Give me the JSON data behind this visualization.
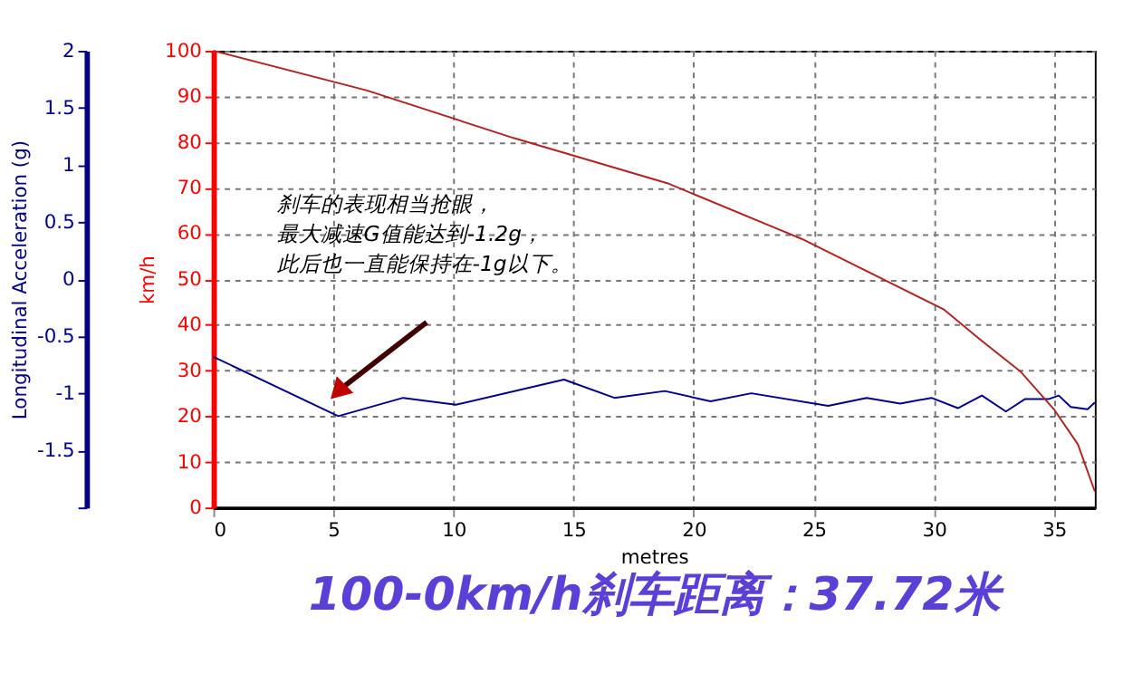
{
  "chart_data": {
    "type": "line",
    "title": "100-0km/h刹车距离：37.72米",
    "xlabel": "metres",
    "ylabel": "Longitudinal Acceleration (g)",
    "y2label": "km/h",
    "x": [
      0,
      5.2,
      7.9,
      10.1,
      14.6,
      16.7,
      18.8,
      20.7,
      22.4,
      25.6,
      27.2,
      28.6,
      29.9,
      31.0,
      32.0,
      33.0,
      33.8,
      34.8,
      35.2,
      35.7,
      36.4,
      36.7
    ],
    "series": [
      {
        "color": "#00008b",
        "axis": "y",
        "values": [
          -0.68,
          -1.2,
          -1.04,
          -1.1,
          -0.88,
          -1.04,
          -0.98,
          -1.07,
          -1.0,
          -1.11,
          -1.04,
          -1.09,
          -1.04,
          -1.13,
          -1.02,
          -1.16,
          -1.05,
          -1.05,
          -1.02,
          -1.12,
          -1.14,
          -1.08
        ]
      },
      {
        "color": "#b22222",
        "axis": "y2",
        "x": [
          0,
          6.4,
          12.5,
          18.9,
          24.5,
          30.4,
          31.9,
          33.6,
          35.0,
          36.0,
          36.7
        ],
        "values": [
          100,
          91.3,
          80.9,
          71,
          58.8,
          43.4,
          36.9,
          29.8,
          21.5,
          13.8,
          3.5
        ]
      }
    ],
    "xlim": [
      0,
      36.7
    ],
    "xticks": [
      0,
      5,
      10,
      15,
      20,
      25,
      30,
      35
    ],
    "ylim": [
      -2,
      2
    ],
    "yticks": [
      {
        "value": -2,
        "label": null
      },
      -1.5,
      -1,
      -0.5,
      0,
      0.5,
      1,
      1.5,
      2
    ],
    "y2lim": [
      0,
      100
    ],
    "y2ticks": [
      0,
      10,
      20,
      30,
      40,
      50,
      60,
      70,
      80,
      90,
      100
    ],
    "grid": true,
    "legend": false,
    "marker": "none",
    "line_style": "solid",
    "annotations": [
      "刹车的表现相当抢眼，最大减速G值能达到-1.2g，此后也一直能保持在-1g以下。"
    ]
  }
}
